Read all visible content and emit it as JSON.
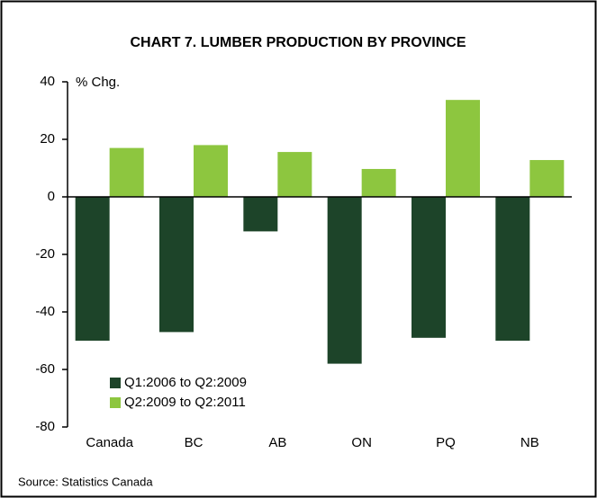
{
  "chart_data": {
    "type": "bar",
    "title": "CHART 7. LUMBER PRODUCTION BY PROVINCE",
    "y_axis_label": "% Chg.",
    "source": "Source: Statistics Canada",
    "categories": [
      "Canada",
      "BC",
      "AB",
      "ON",
      "PQ",
      "NB"
    ],
    "series": [
      {
        "name": "Q1:2006 to Q2:2009",
        "color": "#1d4429",
        "values": [
          -50,
          -47,
          -12,
          -58,
          -49,
          -50
        ]
      },
      {
        "name": "Q2:2009 to Q2:2011",
        "color": "#8dc63f",
        "values": [
          17,
          18,
          15.6,
          9.7,
          33.7,
          12.8
        ]
      }
    ],
    "ylim": [
      -80,
      40
    ],
    "yticks": [
      -80,
      -60,
      -40,
      -20,
      0,
      20,
      40
    ],
    "legend": "lower left"
  }
}
